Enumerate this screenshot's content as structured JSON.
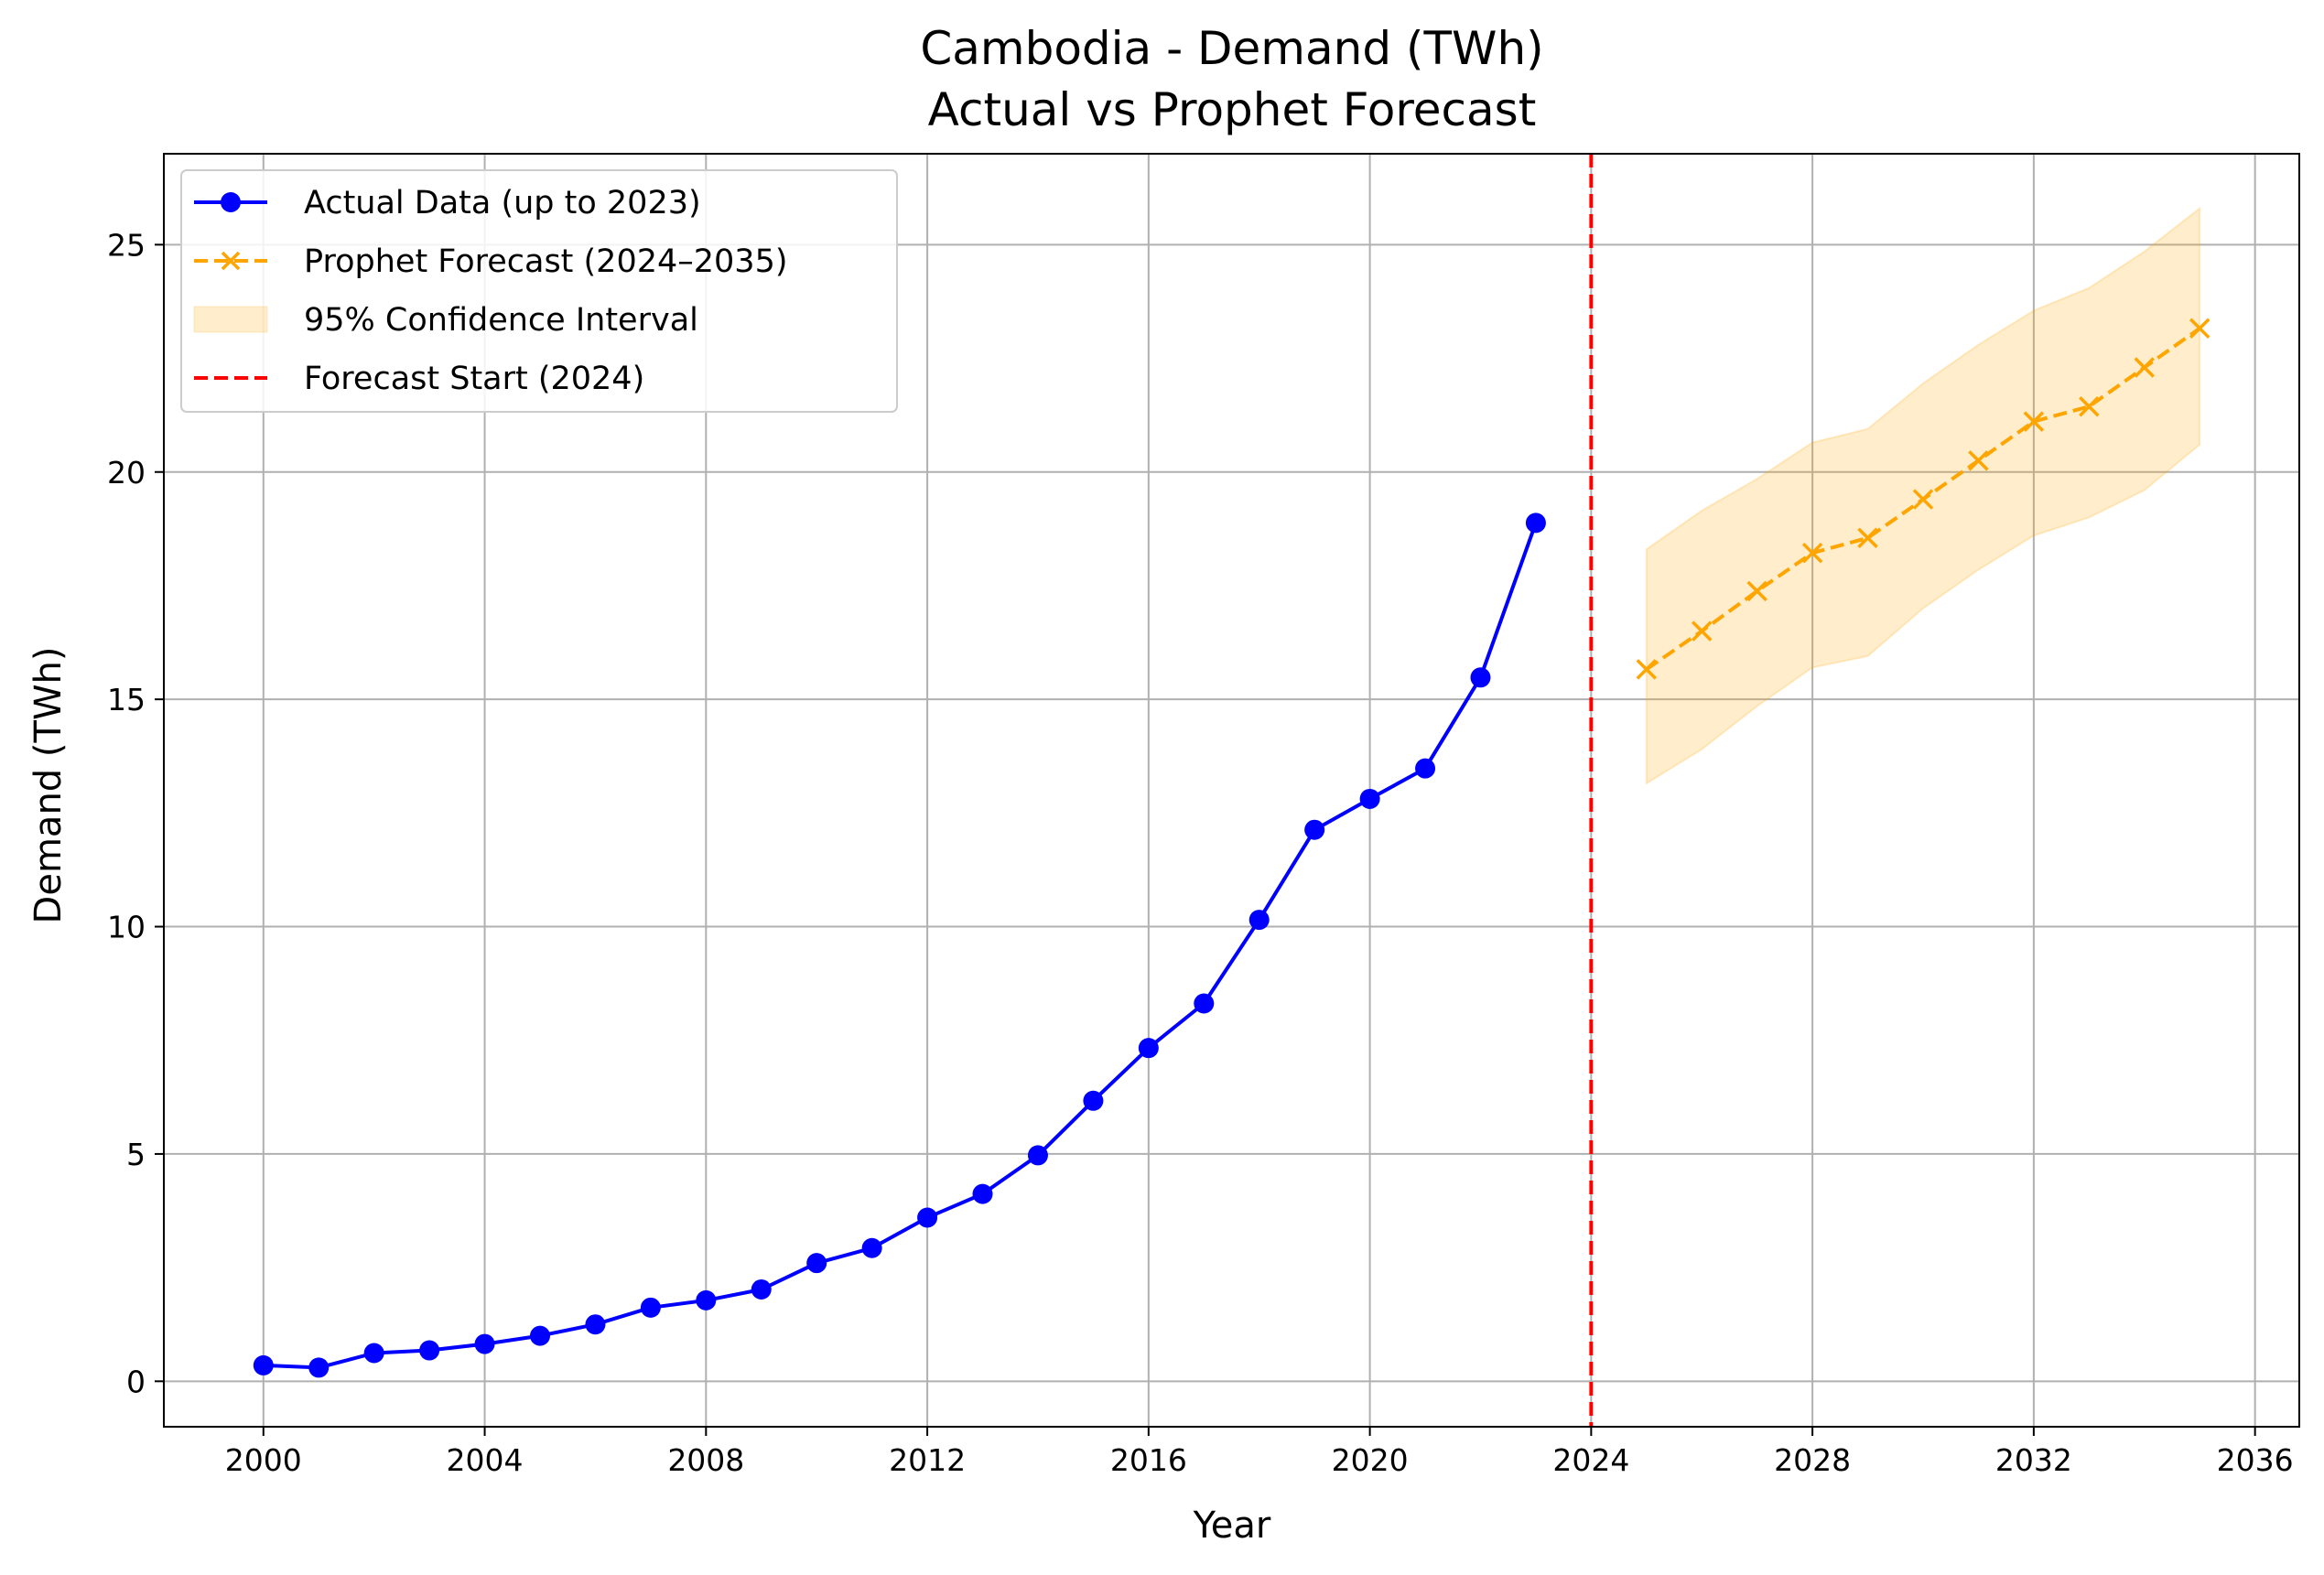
{
  "chart_data": {
    "type": "line",
    "title": "Cambodia - Demand (TWh)",
    "subtitle": "Actual vs Prophet Forecast",
    "xlabel": "Year",
    "ylabel": "Demand (TWh)",
    "xlim": [
      1998.2,
      2036.8
    ],
    "ylim": [
      -1.0,
      27.0
    ],
    "xticks": [
      2000,
      2004,
      2008,
      2012,
      2016,
      2020,
      2024,
      2028,
      2032,
      2036
    ],
    "xtick_labels": [
      "2000",
      "2004",
      "2008",
      "2012",
      "2016",
      "2020",
      "2024",
      "2028",
      "2032",
      "2036"
    ],
    "yticks": [
      0,
      5,
      10,
      15,
      20,
      25
    ],
    "ytick_labels": [
      "0",
      "5",
      "10",
      "15",
      "20",
      "25"
    ],
    "grid": true,
    "legend_position": "top-left",
    "series": [
      {
        "name": "Actual Data (up to 2023)",
        "style": "solid-marker-circle",
        "color": "#0000ff",
        "x": [
          2000,
          2001,
          2002,
          2003,
          2004,
          2005,
          2006,
          2007,
          2008,
          2009,
          2010,
          2011,
          2012,
          2013,
          2014,
          2015,
          2016,
          2017,
          2018,
          2019,
          2020,
          2021,
          2022,
          2023
        ],
        "y": [
          0.35,
          0.3,
          0.62,
          0.68,
          0.82,
          1.0,
          1.25,
          1.62,
          1.78,
          2.02,
          2.6,
          2.93,
          3.6,
          4.12,
          4.97,
          6.17,
          7.33,
          8.31,
          10.15,
          12.13,
          12.81,
          13.48,
          15.48,
          18.88
        ]
      },
      {
        "name": "Prophet Forecast (2024–2035)",
        "style": "dashed-marker-x",
        "color": "#ffa500",
        "x": [
          2025,
          2026,
          2027,
          2028,
          2029,
          2030,
          2031,
          2032,
          2033,
          2034,
          2035
        ],
        "y": [
          15.66,
          16.5,
          17.38,
          18.22,
          18.55,
          19.4,
          20.25,
          21.11,
          21.44,
          22.3,
          23.16
        ]
      }
    ],
    "confidence_interval": {
      "name": "95% Confidence Interval",
      "color": "#ffa500",
      "x": [
        2025,
        2026,
        2027,
        2028,
        2029,
        2030,
        2031,
        2032,
        2033,
        2034,
        2035
      ],
      "lower": [
        13.15,
        13.9,
        14.85,
        15.7,
        15.95,
        17.0,
        17.85,
        18.6,
        19.0,
        19.6,
        20.6
      ],
      "upper": [
        18.3,
        19.15,
        19.85,
        20.65,
        20.95,
        21.95,
        22.8,
        23.55,
        24.05,
        24.85,
        25.8
      ]
    },
    "vline": {
      "name": "Forecast Start (2024)",
      "x": 2024,
      "color": "#ff0000",
      "style": "dashed"
    }
  }
}
